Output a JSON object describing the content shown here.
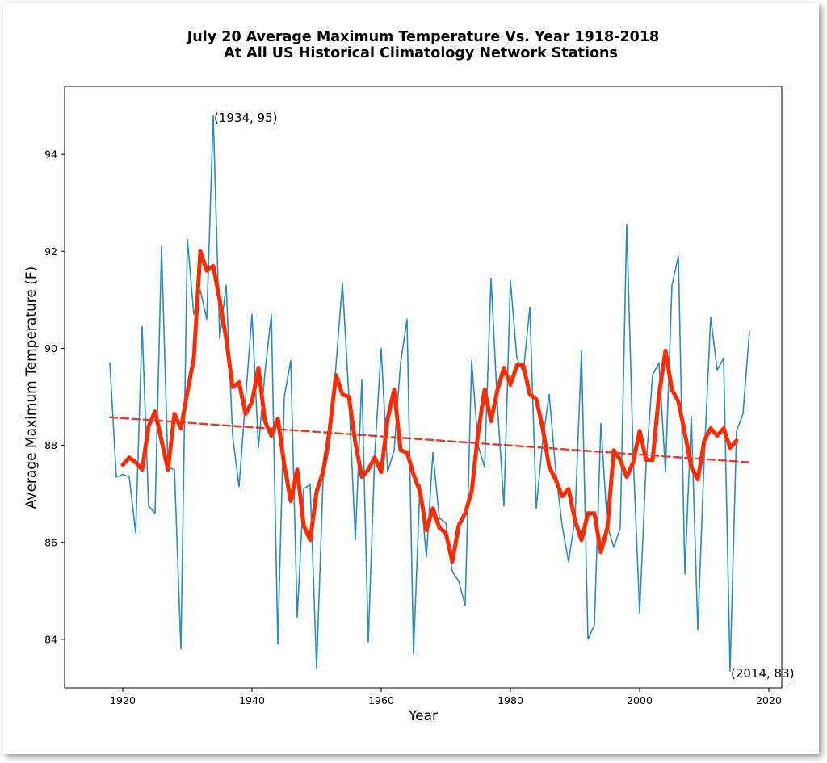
{
  "chart_data": {
    "type": "line",
    "title": "July 20 Average Maximum Temperature Vs. Year 1918-2018",
    "subtitle": "At All US Historical Climatology Network Stations",
    "xlabel": "Year",
    "ylabel": "Average Maximum Temperature (F)",
    "xlim": [
      1911,
      2022
    ],
    "ylim": [
      83.0,
      95.4
    ],
    "xticks": [
      1920,
      1940,
      1960,
      1980,
      2000,
      2020
    ],
    "yticks": [
      84,
      86,
      88,
      90,
      92,
      94
    ],
    "grid": false,
    "colors": {
      "raw": "#2b8cbe",
      "smoothed": "#ff2a00",
      "trend": "#e8392a"
    },
    "series": [
      {
        "style": "thin-line",
        "x": [
          1918,
          1919,
          1920,
          1921,
          1922,
          1923,
          1924,
          1925,
          1926,
          1927,
          1928,
          1929,
          1930,
          1931,
          1932,
          1933,
          1934,
          1935,
          1936,
          1937,
          1938,
          1939,
          1940,
          1941,
          1942,
          1943,
          1944,
          1945,
          1946,
          1947,
          1948,
          1949,
          1950,
          1951,
          1952,
          1953,
          1954,
          1955,
          1956,
          1957,
          1958,
          1959,
          1960,
          1961,
          1962,
          1963,
          1964,
          1965,
          1966,
          1967,
          1968,
          1969,
          1970,
          1971,
          1972,
          1973,
          1974,
          1975,
          1976,
          1977,
          1978,
          1979,
          1980,
          1981,
          1982,
          1983,
          1984,
          1985,
          1986,
          1987,
          1988,
          1989,
          1990,
          1991,
          1992,
          1993,
          1994,
          1995,
          1996,
          1997,
          1998,
          1999,
          2000,
          2001,
          2002,
          2003,
          2004,
          2005,
          2006,
          2007,
          2008,
          2009,
          2010,
          2011,
          2012,
          2013,
          2014,
          2015,
          2016,
          2017
        ],
        "y": [
          89.7,
          87.35,
          87.4,
          87.35,
          86.2,
          90.45,
          86.75,
          86.6,
          92.1,
          87.55,
          87.5,
          83.8,
          92.25,
          90.7,
          91.2,
          90.6,
          94.8,
          90.2,
          91.3,
          88.2,
          87.15,
          88.95,
          90.7,
          87.95,
          89.5,
          90.7,
          83.9,
          89.0,
          89.75,
          84.45,
          87.1,
          87.2,
          83.4,
          87.3,
          88.0,
          89.65,
          91.35,
          89.0,
          86.05,
          89.35,
          83.95,
          87.8,
          90.0,
          87.45,
          87.9,
          89.7,
          90.6,
          83.7,
          87.2,
          85.7,
          87.85,
          86.5,
          86.4,
          85.4,
          85.2,
          84.7,
          89.75,
          88.0,
          87.55,
          91.45,
          88.8,
          86.75,
          91.4,
          89.8,
          89.5,
          90.85,
          86.7,
          88.1,
          89.05,
          87.5,
          86.35,
          85.6,
          86.5,
          89.95,
          84.0,
          84.3,
          88.45,
          86.35,
          85.9,
          86.3,
          92.55,
          87.8,
          84.55,
          87.6,
          89.45,
          89.7,
          87.45,
          91.3,
          91.9,
          85.35,
          88.6,
          84.2,
          87.75,
          90.65,
          89.55,
          89.8,
          83.35,
          88.3,
          88.65,
          90.35
        ]
      },
      {
        "style": "thick-line",
        "x": [
          1920,
          1921,
          1922,
          1923,
          1924,
          1925,
          1926,
          1927,
          1928,
          1929,
          1930,
          1931,
          1932,
          1933,
          1934,
          1935,
          1936,
          1937,
          1938,
          1939,
          1940,
          1941,
          1942,
          1943,
          1944,
          1945,
          1946,
          1947,
          1948,
          1949,
          1950,
          1951,
          1952,
          1953,
          1954,
          1955,
          1956,
          1957,
          1958,
          1959,
          1960,
          1961,
          1962,
          1963,
          1964,
          1965,
          1966,
          1967,
          1968,
          1969,
          1970,
          1971,
          1972,
          1973,
          1974,
          1975,
          1976,
          1977,
          1978,
          1979,
          1980,
          1981,
          1982,
          1983,
          1984,
          1985,
          1986,
          1987,
          1988,
          1989,
          1990,
          1991,
          1992,
          1993,
          1994,
          1995,
          1996,
          1997,
          1998,
          1999,
          2000,
          2001,
          2002,
          2003,
          2004,
          2005,
          2006,
          2007,
          2008,
          2009,
          2010,
          2011,
          2012,
          2013,
          2014,
          2015
        ],
        "y": [
          87.6,
          87.75,
          87.65,
          87.5,
          88.4,
          88.7,
          88.1,
          87.5,
          88.65,
          88.35,
          89.1,
          89.8,
          92.0,
          91.6,
          91.7,
          91.0,
          90.2,
          89.2,
          89.3,
          88.65,
          88.9,
          89.6,
          88.5,
          88.2,
          88.55,
          87.6,
          86.85,
          87.5,
          86.35,
          86.05,
          87.05,
          87.45,
          88.3,
          89.45,
          89.05,
          89.0,
          88.05,
          87.35,
          87.5,
          87.75,
          87.45,
          88.55,
          89.15,
          87.9,
          87.85,
          87.4,
          87.05,
          86.25,
          86.7,
          86.3,
          86.2,
          85.6,
          86.35,
          86.6,
          87.05,
          88.25,
          89.15,
          88.5,
          89.15,
          89.6,
          89.25,
          89.65,
          89.65,
          89.05,
          88.95,
          88.35,
          87.55,
          87.3,
          86.95,
          87.1,
          86.45,
          86.05,
          86.6,
          86.6,
          85.8,
          86.3,
          87.9,
          87.7,
          87.35,
          87.65,
          88.3,
          87.7,
          87.7,
          89.05,
          89.95,
          89.15,
          88.9,
          88.25,
          87.55,
          87.3,
          88.1,
          88.35,
          88.2,
          88.35,
          87.95,
          88.1
        ]
      },
      {
        "style": "dashed-trend",
        "x": [
          1918,
          2017
        ],
        "y": [
          88.58,
          87.65
        ]
      }
    ],
    "annotations": [
      {
        "text": "(1934, 95)",
        "x": 1934,
        "y": 94.8
      },
      {
        "text": "(2014, 83)",
        "x": 2014,
        "y": 83.35
      }
    ]
  }
}
